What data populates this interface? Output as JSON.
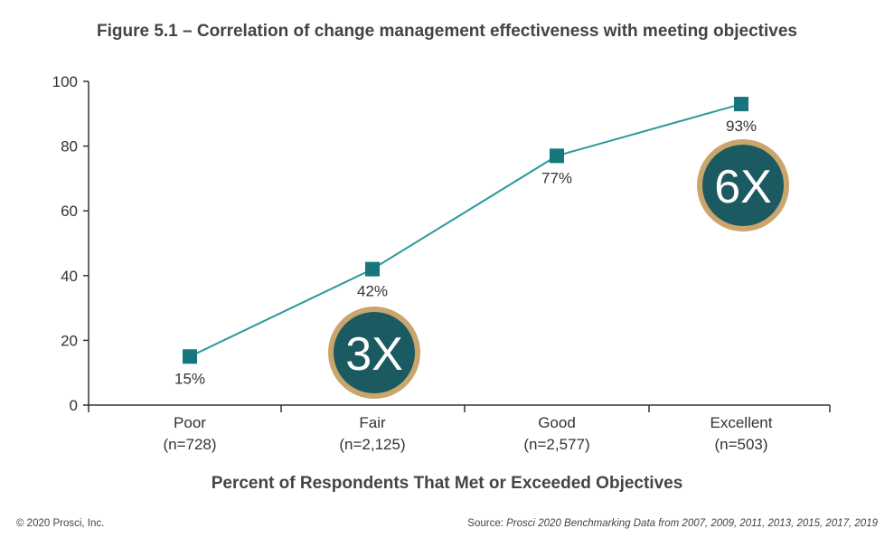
{
  "chart_data": {
    "type": "line",
    "title": "Figure 5.1 – Correlation of change management effectiveness with meeting objectives",
    "xlabel": "Percent of Respondents That Met or Exceeded Objectives",
    "ylabel": "",
    "ylim": [
      0,
      100
    ],
    "yticks": [
      0,
      20,
      40,
      60,
      80,
      100
    ],
    "categories": [
      {
        "name": "Poor",
        "n": "(n=728)"
      },
      {
        "name": "Fair",
        "n": "(n=2,125)"
      },
      {
        "name": "Good",
        "n": "(n=2,577)"
      },
      {
        "name": "Excellent",
        "n": "(n=503)"
      }
    ],
    "values": [
      15,
      42,
      77,
      93
    ],
    "data_labels": [
      "15%",
      "42%",
      "77%",
      "93%"
    ],
    "badges": [
      {
        "text": "3X",
        "category_index": 1
      },
      {
        "text": "6X",
        "category_index": 3
      }
    ]
  },
  "colors": {
    "line": "#2a9a9c",
    "marker": "#17767c",
    "badge_fill": "#1b5a60",
    "badge_ring": "#c9a66b"
  },
  "footer": {
    "copyright": "© 2020 Prosci, Inc.",
    "source_prefix": "Source: ",
    "source_text": "Prosci 2020 Benchmarking Data from 2007, 2009, 2011, 2013, 2015, 2017, 2019"
  }
}
